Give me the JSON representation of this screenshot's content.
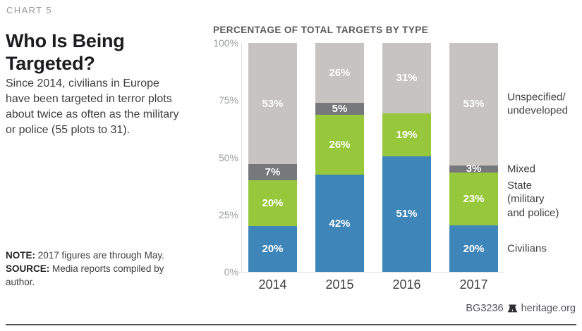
{
  "page": {
    "chart_label": "CHART 5",
    "title": "Who Is Being Targeted?",
    "description": "Since 2014, civilians in Europe have been targeted in terror plots about twice as often as the military or police (55 plots to 31)."
  },
  "notes": {
    "note_label": "NOTE:",
    "note_text": "2017 figures are through May.",
    "source_label": "SOURCE:",
    "source_text": "Media reports compiled by author."
  },
  "footer": {
    "report_id": "BG3236",
    "site": "heritage.org",
    "bell_icon": "liberty-bell-icon"
  },
  "chart_data": {
    "type": "bar",
    "stacked": true,
    "title": "PERCENTAGE OF TOTAL TARGETS BY TYPE",
    "categories": [
      "2014",
      "2015",
      "2016",
      "2017"
    ],
    "series": [
      {
        "key": "civilians",
        "name": "Civilians",
        "color": "#3e86b9",
        "values": [
          20,
          42,
          51,
          20
        ]
      },
      {
        "key": "state",
        "name": "State (military and police)",
        "color": "#97c83c",
        "values": [
          20,
          26,
          19,
          23
        ]
      },
      {
        "key": "mixed",
        "name": "Mixed",
        "color": "#77787b",
        "values": [
          7,
          5,
          null,
          3
        ]
      },
      {
        "key": "unspecified",
        "name": "Unspecified/undeveloped",
        "color": "#c7c3c0",
        "values": [
          53,
          26,
          31,
          53
        ]
      }
    ],
    "value_suffix": "%",
    "y_ticks": [
      "100%",
      "75%",
      "50%",
      "25%",
      "0%"
    ],
    "ylim": [
      0,
      100
    ],
    "grid": false,
    "xlabel": "",
    "ylabel": "",
    "legend_position": "right",
    "legend": [
      "Unspecified/\nundeveloped",
      "Mixed",
      "State\n(military\nand police)",
      "Civilians"
    ]
  }
}
